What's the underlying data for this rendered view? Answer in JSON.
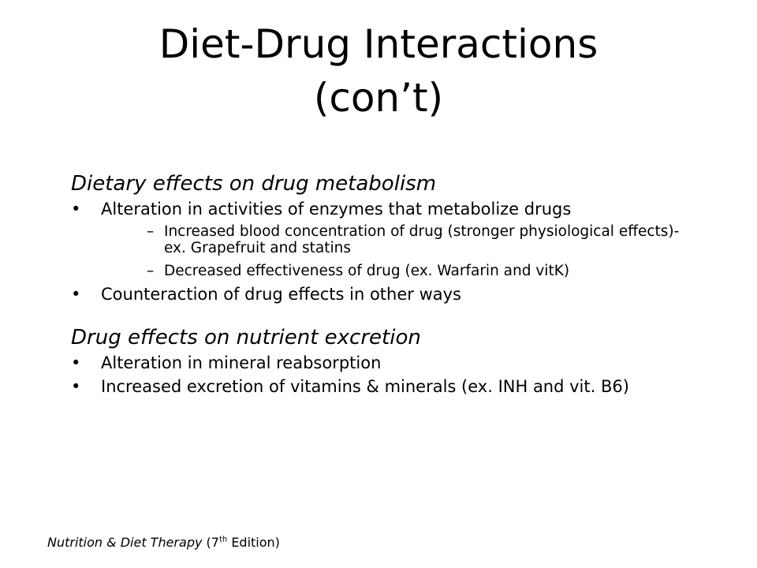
{
  "title": "Diet-Drug Interactions (con’t)",
  "sections": [
    {
      "heading": "Dietary effects on drug metabolism",
      "items": [
        {
          "text": "Alteration in activities of enzymes that metabolize drugs",
          "subitems": [
            "Increased blood concentration of drug (stronger physiological effects)-ex. Grapefruit and statins",
            "Decreased effectiveness of drug (ex. Warfarin and vitK)"
          ]
        },
        {
          "text": "Counteraction of drug effects in other ways"
        }
      ]
    },
    {
      "heading": "Drug effects on nutrient excretion",
      "items": [
        {
          "text": "Alteration in mineral reabsorption"
        },
        {
          "text": "Increased excretion of vitamins & minerals (ex. INH and vit. B6)"
        }
      ]
    }
  ],
  "footer": {
    "title": "Nutrition & Diet Therapy",
    "edition_prefix": "(7",
    "edition_sup": "th",
    "edition_suffix": "Edition)"
  }
}
